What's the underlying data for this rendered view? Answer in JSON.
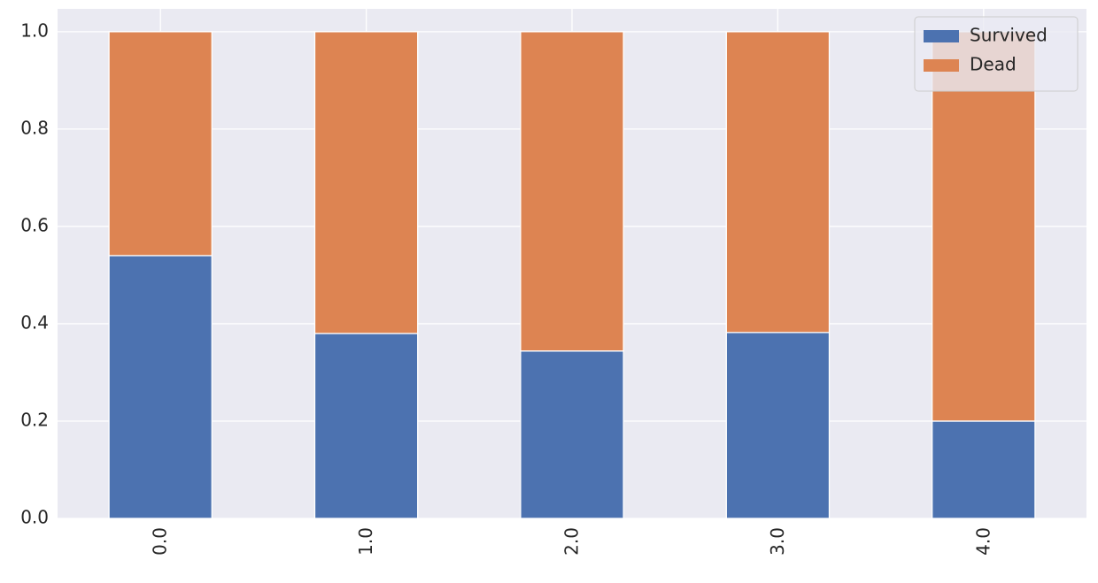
{
  "chart_data": {
    "type": "stacked_bar",
    "categories": [
      "0.0",
      "1.0",
      "2.0",
      "3.0",
      "4.0"
    ],
    "series": [
      {
        "name": "Survived",
        "color": "#4c72b0",
        "values": [
          0.54,
          0.38,
          0.344,
          0.382,
          0.2
        ]
      },
      {
        "name": "Dead",
        "color": "#dd8452",
        "values": [
          0.46,
          0.62,
          0.656,
          0.618,
          0.8
        ]
      }
    ],
    "ylim": [
      0,
      1.047
    ],
    "yticks": [
      {
        "value": 0,
        "label": "0.0"
      },
      {
        "value": 0.2,
        "label": "0.2"
      },
      {
        "value": 0.4,
        "label": "0.4"
      },
      {
        "value": 0.6,
        "label": "0.6"
      },
      {
        "value": 0.8,
        "label": "0.8"
      },
      {
        "value": 1,
        "label": "1.0"
      }
    ],
    "grid": true,
    "legend": "upper-right"
  }
}
